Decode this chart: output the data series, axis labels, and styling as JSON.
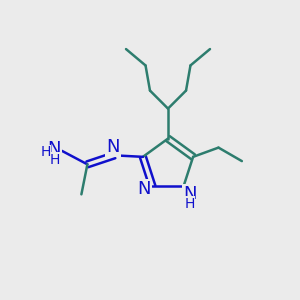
{
  "background_color": "#ebebeb",
  "bond_color": "#2d7d6e",
  "nitrogen_color": "#1010cc",
  "line_width": 1.8,
  "font_size_large": 13,
  "font_size_small": 10,
  "figsize": [
    3.0,
    3.0
  ],
  "dpi": 100,
  "xlim": [
    0,
    10
  ],
  "ylim": [
    0,
    10
  ]
}
